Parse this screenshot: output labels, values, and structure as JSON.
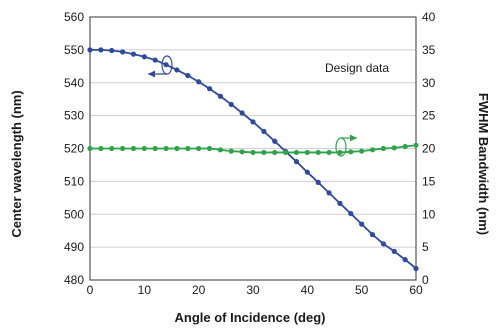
{
  "chart_data": {
    "type": "line",
    "title": "",
    "annotation": "Design data",
    "x": [
      0,
      2,
      4,
      6,
      8,
      10,
      12,
      14,
      16,
      18,
      20,
      22,
      24,
      26,
      28,
      30,
      32,
      34,
      36,
      38,
      40,
      42,
      44,
      46,
      48,
      50,
      52,
      54,
      56,
      58,
      60
    ],
    "xlabel": "Angle of Incidence (deg)",
    "xlim": [
      0,
      60
    ],
    "xticks": [
      "0",
      "10",
      "20",
      "30",
      "40",
      "50",
      "60"
    ],
    "ylabel_left": "Center wavelength (nm)",
    "ylim_left": [
      480,
      560
    ],
    "yticks_left": [
      "480",
      "490",
      "500",
      "510",
      "520",
      "530",
      "540",
      "550",
      "560"
    ],
    "ylabel_right": "FWHM Bandwidth (nm)",
    "ylim_right": [
      0,
      40
    ],
    "yticks_right": [
      "0",
      "5",
      "10",
      "15",
      "20",
      "25",
      "30",
      "35",
      "40"
    ],
    "grid": "horizontal",
    "series": [
      {
        "axis": "left",
        "color": "#2e4a9e",
        "values": [
          550.0,
          550.0,
          549.8,
          549.4,
          548.7,
          547.9,
          546.9,
          545.5,
          543.9,
          542.2,
          540.3,
          538.2,
          535.9,
          533.4,
          530.8,
          528.1,
          525.2,
          522.2,
          519.1,
          516.0,
          512.8,
          509.7,
          506.5,
          503.3,
          500.2,
          497.0,
          493.8,
          491.0,
          488.7,
          486.2,
          483.5
        ]
      },
      {
        "axis": "right",
        "color": "#2ea34a",
        "values": [
          20.0,
          20.0,
          20.0,
          20.0,
          20.0,
          20.0,
          20.0,
          20.0,
          20.0,
          20.0,
          20.0,
          20.0,
          19.8,
          19.6,
          19.5,
          19.4,
          19.4,
          19.4,
          19.4,
          19.4,
          19.4,
          19.4,
          19.4,
          19.4,
          19.5,
          19.6,
          19.8,
          20.0,
          20.1,
          20.3,
          20.5
        ]
      }
    ]
  }
}
